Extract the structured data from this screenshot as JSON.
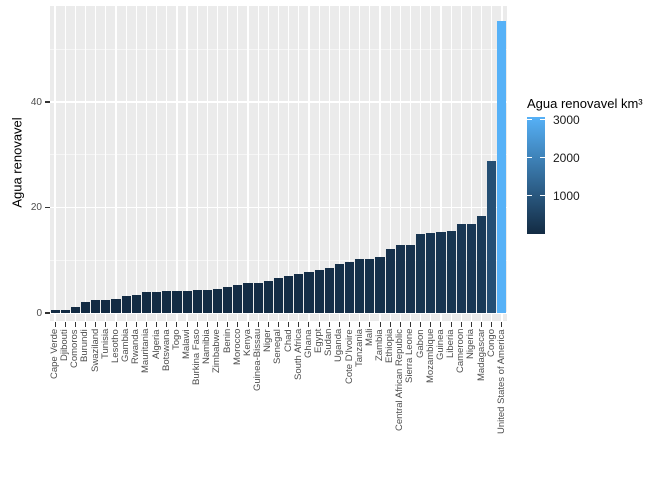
{
  "figure": {
    "background": "#ffffff",
    "panel_background": "#EBEBEB",
    "gridline_color": "#ffffff",
    "axis_text_color": "#4d4d4d",
    "tick_mark_color": "#333333"
  },
  "y_axis": {
    "title": "Agua renovavel",
    "tick_labels": [
      "0",
      "20",
      "40"
    ],
    "tick_values": [
      0,
      20,
      40
    ],
    "minor_tick_values": [
      10,
      30,
      50
    ]
  },
  "legend": {
    "title": "Agua renovavel km³",
    "tick_labels": [
      "3000",
      "2000",
      "1000"
    ],
    "tick_values": [
      3000,
      2000,
      1000
    ],
    "gradient_low": "#132B43",
    "gradient_high": "#56B1F7"
  },
  "chart_data": {
    "type": "bar",
    "title": "",
    "xlabel": "",
    "ylabel": "Agua renovavel",
    "legend_title": "Agua renovavel km³",
    "ylim": [
      0,
      58
    ],
    "y_ticks": [
      0,
      20,
      40
    ],
    "grid": true,
    "legend_position": "right",
    "categories": [
      "Cape Verde",
      "Djibouti",
      "Comoros",
      "Burundi",
      "Swaziland",
      "Tunisia",
      "Lesotho",
      "Gambia",
      "Rwanda",
      "Mauritania",
      "Algeria",
      "Botswana",
      "Togo",
      "Malawi",
      "Burkina Faso",
      "Namibia",
      "Zimbabwe",
      "Benin",
      "Morocco",
      "Kenya",
      "Guinea-Bissau",
      "Niger",
      "Senegal",
      "Chad",
      "South Africa",
      "Ghana",
      "Egypt",
      "Sudan",
      "Uganda",
      "Cote D'Ivoire",
      "Tanzania",
      "Mali",
      "Zambia",
      "Ethiopia",
      "Central African Republic",
      "Sierra Leone",
      "Gabon",
      "Mozambique",
      "Guinea",
      "Liberia",
      "Cameroon",
      "Nigeria",
      "Madagascar",
      "Congo",
      "United States of America"
    ],
    "values": [
      0.6,
      0.6,
      1.2,
      2.0,
      2.4,
      2.4,
      2.7,
      3.2,
      3.4,
      4.0,
      4.0,
      4.2,
      4.2,
      4.2,
      4.4,
      4.4,
      4.5,
      4.9,
      5.4,
      5.6,
      5.6,
      6.1,
      6.7,
      7.1,
      7.4,
      7.8,
      8.2,
      8.6,
      9.3,
      9.7,
      10.2,
      10.3,
      10.6,
      12.1,
      12.9,
      12.9,
      14.9,
      15.2,
      15.4,
      15.6,
      16.9,
      16.9,
      18.3,
      28.8,
      55.3
    ],
    "fill_km3": [
      0.4,
      0.4,
      1.4,
      4,
      6,
      6,
      7,
      10,
      12,
      16,
      16,
      18,
      18,
      18,
      19,
      19,
      20,
      24,
      29,
      31,
      31,
      37,
      45,
      50,
      55,
      61,
      67,
      74,
      86,
      94,
      104,
      106,
      112,
      146,
      166,
      166,
      222,
      231,
      237,
      243,
      286,
      286,
      335,
      832,
      3069
    ],
    "fill_scale": {
      "low": "#132B43",
      "high": "#56B1F7",
      "min": 0,
      "max": 3069
    }
  }
}
